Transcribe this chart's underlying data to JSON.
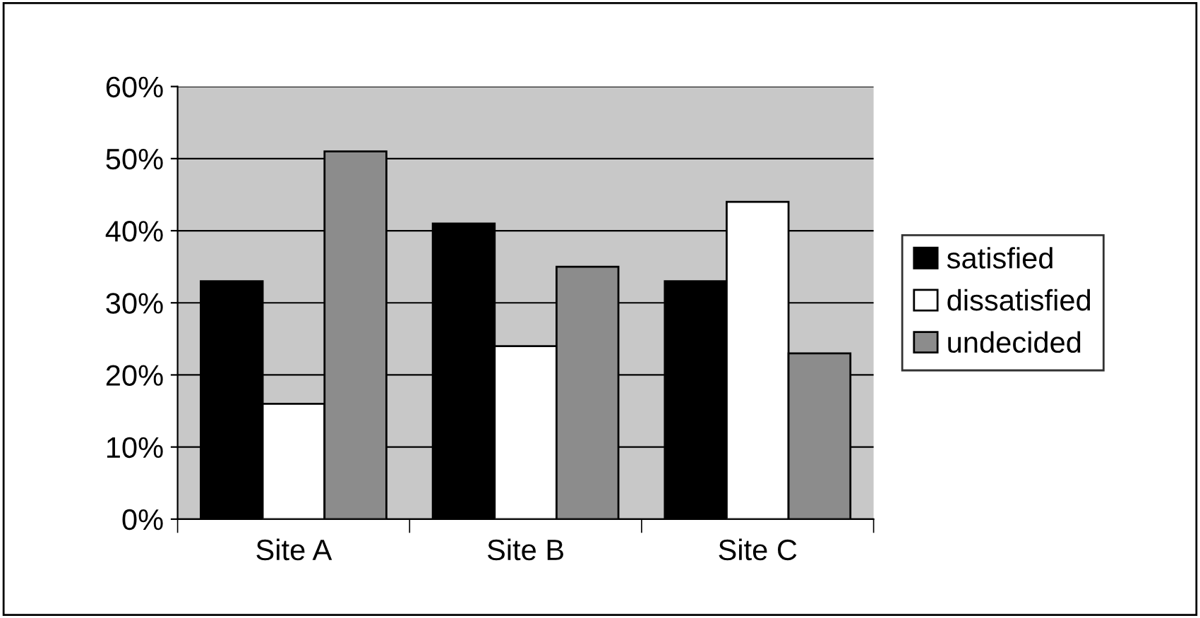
{
  "chart_data": {
    "type": "bar",
    "categories": [
      "Site A",
      "Site B",
      "Site C"
    ],
    "series": [
      {
        "name": "satisfied",
        "color": "#000000",
        "values": [
          33,
          41,
          33
        ]
      },
      {
        "name": "dissatisfied",
        "color": "#ffffff",
        "values": [
          16,
          24,
          44
        ]
      },
      {
        "name": "undecided",
        "color": "#8c8c8c",
        "values": [
          51,
          35,
          23
        ]
      }
    ],
    "ylim": [
      0,
      60
    ],
    "yticks": [
      {
        "value": 0,
        "label": "0%"
      },
      {
        "value": 10,
        "label": "10%"
      },
      {
        "value": 20,
        "label": "20%"
      },
      {
        "value": 30,
        "label": "30%"
      },
      {
        "value": 40,
        "label": "40%"
      },
      {
        "value": 50,
        "label": "50%"
      },
      {
        "value": 60,
        "label": "60%"
      }
    ],
    "grid": "y",
    "legend": "right"
  }
}
